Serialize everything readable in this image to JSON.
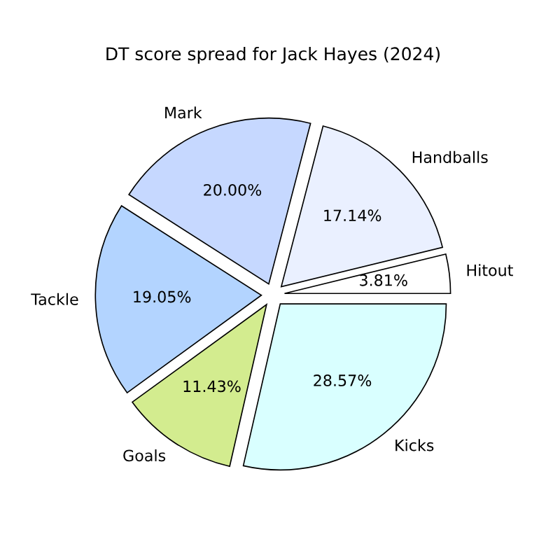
{
  "chart_data": {
    "type": "pie",
    "title": "DT score spread for Jack Hayes (2024)",
    "categories": [
      "Hitout",
      "Handballs",
      "Mark",
      "Tackle",
      "Goals",
      "Kicks"
    ],
    "values": [
      3.81,
      17.14,
      20.0,
      19.05,
      11.43,
      28.57
    ],
    "value_labels": [
      "3.81%",
      "17.14%",
      "20.00%",
      "19.05%",
      "11.43%",
      "28.57%"
    ],
    "colors": [
      "#ffffff",
      "#eaf0ff",
      "#c6d8ff",
      "#b3d4ff",
      "#d3ec8f",
      "#d9ffff"
    ]
  }
}
